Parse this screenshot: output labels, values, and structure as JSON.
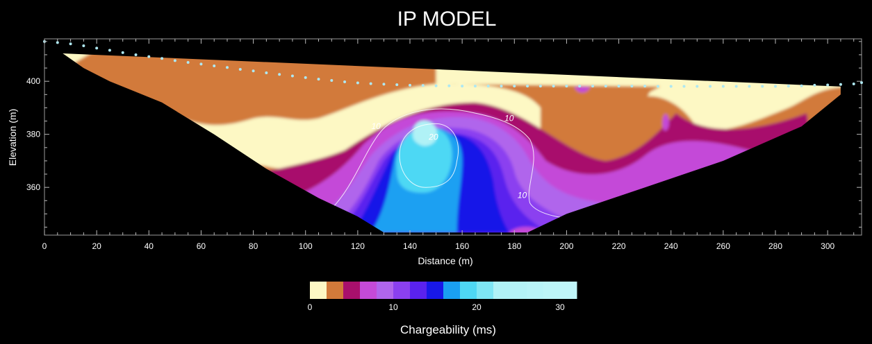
{
  "chart_data": {
    "type": "heatmap",
    "title": "IP MODEL",
    "xlabel": "Distance (m)",
    "ylabel": "Elevation (m)",
    "xlim": [
      0,
      313
    ],
    "ylim": [
      342,
      416
    ],
    "x_ticks": [
      0,
      20,
      40,
      60,
      80,
      100,
      120,
      140,
      160,
      180,
      200,
      220,
      240,
      260,
      280,
      300
    ],
    "y_ticks": [
      360,
      380,
      400
    ],
    "grid": false,
    "background": "#000000",
    "colorbar": {
      "label": "Chargeability (ms)",
      "ticks": [
        0,
        10,
        20,
        30
      ],
      "range": [
        0,
        32
      ],
      "colors": [
        "#fdf8c4",
        "#d27a3a",
        "#a8106c",
        "#c44ad8",
        "#b065ec",
        "#8b40f0",
        "#5a22ee",
        "#1818e8",
        "#1aa0f2",
        "#4ed8f4",
        "#7ee6f4",
        "#b0f2f6",
        "#b4f3f7",
        "#b8f4f8",
        "#bcf5f8",
        "#c0f6f9"
      ]
    },
    "contour_labels": [
      {
        "text": "10",
        "x": 127,
        "y": 382
      },
      {
        "text": "20",
        "x": 149,
        "y": 378
      },
      {
        "text": "10",
        "x": 178,
        "y": 385
      },
      {
        "text": "10",
        "x": 183,
        "y": 356
      }
    ],
    "surface": {
      "x": [
        0,
        5,
        10,
        15,
        20,
        25,
        30,
        35,
        40,
        45,
        50,
        55,
        60,
        65,
        70,
        75,
        80,
        85,
        90,
        95,
        100,
        105,
        110,
        115,
        120,
        125,
        130,
        135,
        140,
        145,
        150,
        155,
        160,
        165,
        170,
        175,
        180,
        185,
        190,
        195,
        200,
        205,
        210,
        215,
        220,
        225,
        230,
        235,
        240,
        245,
        250,
        255,
        260,
        265,
        270,
        275,
        280,
        285,
        290,
        295,
        300,
        305,
        310,
        313
      ],
      "elevation": [
        415,
        414.6,
        414.1,
        413.4,
        412.5,
        411.7,
        410.8,
        410,
        409.3,
        408.6,
        407.8,
        407.1,
        406.5,
        405.8,
        405.2,
        404.5,
        403.9,
        403.2,
        402.6,
        402,
        401.4,
        400.8,
        400.3,
        399.8,
        399.4,
        399.1,
        398.9,
        398.7,
        398.5,
        398.4,
        398.3,
        398.3,
        398.2,
        398.2,
        398.2,
        398.2,
        398.2,
        398.2,
        398.2,
        398.2,
        398.2,
        398.2,
        398.2,
        398.2,
        398.2,
        398.2,
        398.2,
        398.1,
        398.1,
        398.1,
        398.1,
        398.1,
        398.1,
        398.1,
        398.1,
        398.1,
        398.1,
        398.2,
        398.3,
        398.5,
        398.6,
        398.8,
        399,
        399.5
      ]
    },
    "model_section": {
      "outline": [
        [
          7,
          410.5
        ],
        [
          15,
          405
        ],
        [
          25,
          400
        ],
        [
          45,
          392
        ],
        [
          65,
          380
        ],
        [
          85,
          367
        ],
        [
          105,
          356
        ],
        [
          120,
          349
        ],
        [
          130,
          343
        ],
        [
          185,
          343
        ],
        [
          200,
          350
        ],
        [
          230,
          360
        ],
        [
          260,
          370
        ],
        [
          290,
          383
        ],
        [
          305,
          395
        ],
        [
          305,
          398
        ],
        [
          7,
          410.5
        ]
      ],
      "bottom": 343
    }
  }
}
